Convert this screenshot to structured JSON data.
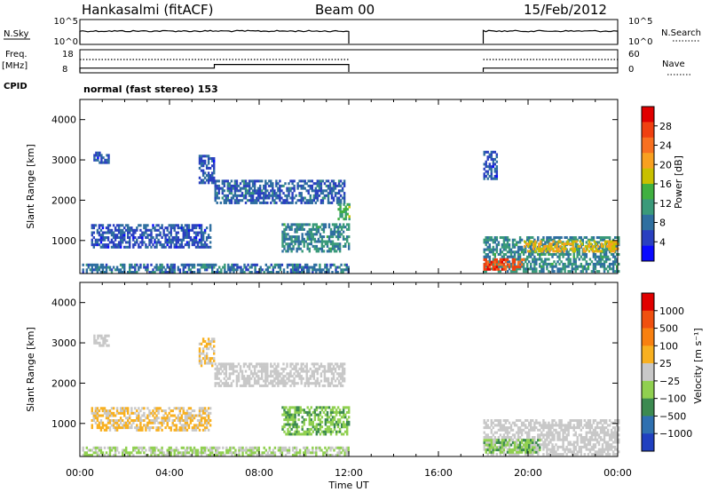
{
  "header": {
    "station": "Hankasalmi (fitACF)",
    "beam": "Beam 00",
    "date": "15/Feb/2012"
  },
  "panel_labels": {
    "nsky": "N.Sky",
    "freq": "Freq.",
    "freq_unit": "[MHz]",
    "cpid": "CPID",
    "nsearch": "N.Search",
    "nave": "Nave",
    "cpid_value": "normal (fast stereo) 153"
  },
  "colors": {
    "power": [
      "#0a0aff",
      "#2a40c0",
      "#2f6fa0",
      "#3a9a7a",
      "#40b040",
      "#c8c000",
      "#f8a020",
      "#f87020",
      "#f04010",
      "#e00000"
    ],
    "velocity": [
      "#2040c0",
      "#2f70b0",
      "#3c8a50",
      "#90d050",
      "#c8c8c8",
      "#f8b020",
      "#f88010",
      "#f05010",
      "#e00000"
    ]
  },
  "chart_data": [
    {
      "type": "line",
      "title": "N.Sky / N.Search",
      "ylabel": "N.Sky",
      "y_ticks_left": [
        "10^5",
        "10^0"
      ],
      "y_ticks_right": [
        "10^5",
        "10^0"
      ],
      "legend": [
        "N.Search"
      ],
      "x_range_hours": [
        0,
        24
      ],
      "segments": [
        [
          0,
          12
        ],
        [
          18,
          24
        ]
      ],
      "level": "10^2 (approx)"
    },
    {
      "type": "line",
      "title": "Freq. / Nave",
      "ylabel": "Freq. [MHz]",
      "ylim_left": [
        8,
        18
      ],
      "ylim_right": [
        0,
        60
      ],
      "y_ticks_left": [
        "18",
        "8"
      ],
      "y_ticks_right": [
        "60",
        "0"
      ],
      "legend": [
        "Nave"
      ],
      "series": [
        {
          "name": "Freq.",
          "x": [
            0,
            6,
            6,
            12,
            18,
            24
          ],
          "values": [
            9.8,
            9.8,
            11.5,
            11.5,
            9.8,
            9.8
          ]
        },
        {
          "name": "Nave",
          "x": [
            0,
            12,
            18,
            24
          ],
          "values": [
            35,
            35,
            35,
            35
          ]
        }
      ]
    },
    {
      "type": "heatmap",
      "xlabel": "Time UT",
      "ylabel": "Slant Range [km]",
      "colorbar_label": "Power [dB]",
      "colorbar_ticks": [
        "28",
        "24",
        "20",
        "16",
        "12",
        "8",
        "4"
      ],
      "colorbar_range": [
        0,
        32
      ],
      "x_ticks": [
        "00:00",
        "04:00",
        "08:00",
        "12:00",
        "16:00",
        "20:00",
        "00:00"
      ],
      "y_ticks": [
        "1000",
        "2000",
        "3000",
        "4000"
      ],
      "ylim": [
        180,
        4500
      ],
      "regions": [
        {
          "t0": 0.1,
          "t1": 12.0,
          "r0": 180,
          "r1": 420,
          "val": 8
        },
        {
          "t0": 0.5,
          "t1": 5.8,
          "r0": 800,
          "r1": 1350,
          "val": 6
        },
        {
          "t0": 0.6,
          "t1": 1.3,
          "r0": 2900,
          "r1": 3200,
          "val": 6
        },
        {
          "t0": 5.3,
          "t1": 6.0,
          "r0": 2400,
          "r1": 3100,
          "val": 6
        },
        {
          "t0": 6.0,
          "t1": 11.8,
          "r0": 1900,
          "r1": 2450,
          "val": 7
        },
        {
          "t0": 9.0,
          "t1": 12.0,
          "r0": 700,
          "r1": 1400,
          "val": 10
        },
        {
          "t0": 11.5,
          "t1": 12.0,
          "r0": 1500,
          "r1": 1900,
          "val": 14
        },
        {
          "t0": 18.0,
          "t1": 18.6,
          "r0": 2500,
          "r1": 3200,
          "val": 6
        },
        {
          "t0": 18.0,
          "t1": 24.0,
          "r0": 200,
          "r1": 1100,
          "val": 10
        },
        {
          "t0": 18.0,
          "t1": 19.8,
          "r0": 250,
          "r1": 500,
          "val": 27
        },
        {
          "t0": 19.8,
          "t1": 24.0,
          "r0": 700,
          "r1": 950,
          "val": 19
        }
      ]
    },
    {
      "type": "heatmap",
      "xlabel": "Time UT",
      "ylabel": "Slant Range [km]",
      "colorbar_label": "Velocity [m s⁻¹]",
      "colorbar_ticks": [
        "1000",
        "500",
        "100",
        "25",
        "−25",
        "−100",
        "−500",
        "−1000"
      ],
      "colorbar_range": [
        -1200,
        1200
      ],
      "x_ticks": [
        "00:00",
        "04:00",
        "08:00",
        "12:00",
        "16:00",
        "20:00",
        "00:00"
      ],
      "y_ticks": [
        "1000",
        "2000",
        "3000",
        "4000"
      ],
      "ylim": [
        180,
        4500
      ],
      "regions": [
        {
          "t0": 0.1,
          "t1": 12.0,
          "r0": 180,
          "r1": 420,
          "val": -150
        },
        {
          "t0": 0.5,
          "t1": 5.8,
          "r0": 800,
          "r1": 1350,
          "val": 150
        },
        {
          "t0": 0.6,
          "t1": 1.3,
          "r0": 2900,
          "r1": 3200,
          "val": 0
        },
        {
          "t0": 5.3,
          "t1": 6.0,
          "r0": 2400,
          "r1": 3100,
          "val": 120
        },
        {
          "t0": 6.0,
          "t1": 11.8,
          "r0": 1900,
          "r1": 2450,
          "val": 0
        },
        {
          "t0": 9.0,
          "t1": 12.0,
          "r0": 700,
          "r1": 1400,
          "val": -350
        },
        {
          "t0": 18.0,
          "t1": 24.0,
          "r0": 200,
          "r1": 1100,
          "val": 0
        },
        {
          "t0": 18.0,
          "t1": 20.5,
          "r0": 250,
          "r1": 600,
          "val": -350
        }
      ]
    }
  ]
}
